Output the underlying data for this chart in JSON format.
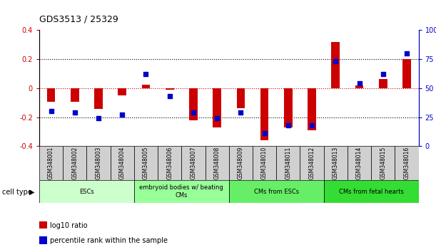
{
  "title": "GDS3513 / 25329",
  "samples": [
    "GSM348001",
    "GSM348002",
    "GSM348003",
    "GSM348004",
    "GSM348005",
    "GSM348006",
    "GSM348007",
    "GSM348008",
    "GSM348009",
    "GSM348010",
    "GSM348011",
    "GSM348012",
    "GSM348013",
    "GSM348014",
    "GSM348015",
    "GSM348016"
  ],
  "log10_ratio": [
    -0.095,
    -0.095,
    -0.145,
    -0.05,
    0.025,
    -0.01,
    -0.22,
    -0.27,
    -0.14,
    -0.36,
    -0.27,
    -0.29,
    0.32,
    0.02,
    0.065,
    0.2
  ],
  "percentile_rank": [
    30,
    29,
    24,
    27,
    62,
    43,
    29,
    24,
    29,
    11,
    18,
    18,
    73,
    54,
    62,
    80
  ],
  "cell_type_groups": [
    {
      "label": "ESCs",
      "start": 0,
      "end": 3,
      "color": "#ccffcc"
    },
    {
      "label": "embryoid bodies w/ beating\nCMs",
      "start": 4,
      "end": 7,
      "color": "#99ff99"
    },
    {
      "label": "CMs from ESCs",
      "start": 8,
      "end": 11,
      "color": "#66ee66"
    },
    {
      "label": "CMs from fetal hearts",
      "start": 12,
      "end": 15,
      "color": "#33dd33"
    }
  ],
  "group_colors": [
    "#ccffcc",
    "#99ff99",
    "#66ee66",
    "#33dd33"
  ],
  "ylim_left": [
    -0.4,
    0.4
  ],
  "ylim_right": [
    0,
    100
  ],
  "bar_color_red": "#cc0000",
  "bar_color_blue": "#0000cc",
  "dotted_line_color": "#000000",
  "zero_line_color": "#cc0000",
  "tick_color_left": "#cc0000",
  "tick_color_right": "#0000cc",
  "legend_red_label": "log10 ratio",
  "legend_blue_label": "percentile rank within the sample"
}
